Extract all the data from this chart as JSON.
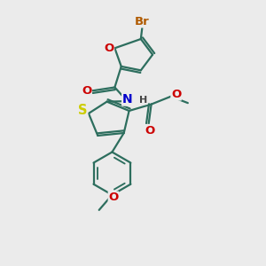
{
  "bg_color": "#ebebeb",
  "bond_color": "#2d6e5e",
  "bond_width": 1.6,
  "atom_colors": {
    "Br": "#b05a00",
    "O": "#cc0000",
    "N": "#0000cc",
    "S": "#cccc00"
  },
  "font_size": 8.5,
  "fig_size": [
    3.0,
    3.0
  ],
  "dpi": 100,
  "xlim": [
    0,
    10
  ],
  "ylim": [
    0,
    10
  ]
}
